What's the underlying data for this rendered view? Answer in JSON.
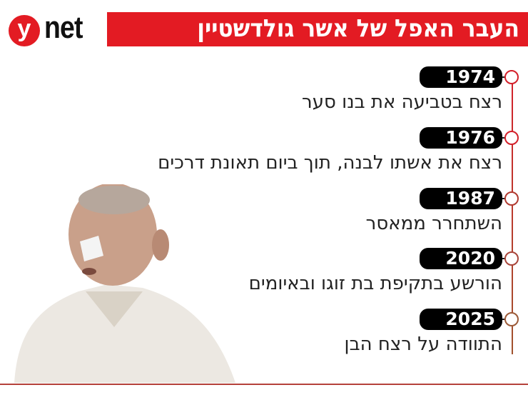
{
  "header": {
    "logo": {
      "badge": "y",
      "text": "net"
    },
    "title": "העבר האפל של אשר גולדשטיין",
    "accent_color": "#e31b23"
  },
  "timeline": [
    {
      "year": "1974",
      "text": "רצח בטביעה את בנו סער"
    },
    {
      "year": "1976",
      "text": "רצח את אשתו לבנה, תוך ביום תאונת דרכים"
    },
    {
      "year": "1987",
      "text": "השתחרר ממאסר"
    },
    {
      "year": "2020",
      "text": "הורשע בתקיפת בת זוגו ובאיומים"
    },
    {
      "year": "2025",
      "text": "התוודה על רצח הבן"
    }
  ]
}
